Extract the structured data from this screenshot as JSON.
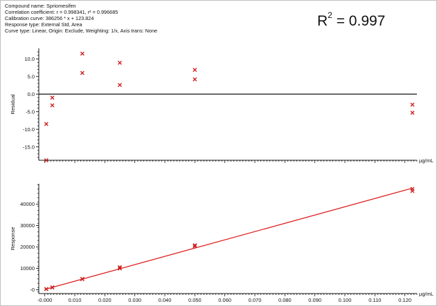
{
  "info": {
    "compound": "Compound name: Spriomesifen",
    "correlation": "Correlation coefficient: r = 0.998341, r² = 0.996685",
    "calibration": "Calibration curve: 386256 * x + 123.824",
    "response_type": "Response type: External Std, Area",
    "curve_type": "Curve type: Linear, Origin: Exclude, Weighting: 1/x, Axis trans: None"
  },
  "r2": {
    "label": "R",
    "sup": "2",
    "value": "= 0.997"
  },
  "colors": {
    "points": "#cc2222",
    "fit_line": "#dd2222",
    "axes": "#111111"
  },
  "chart_data": [
    {
      "type": "scatter",
      "ylabel": "Residual",
      "xunit": "μg/mL",
      "xlim": [
        -0.002,
        0.124
      ],
      "ylim": [
        -18.8,
        13.0
      ],
      "yticks": [
        10.0,
        5.0,
        0.0,
        -5.0,
        -10.0,
        -15.0
      ],
      "ytick_labels": [
        "10.0",
        "5.0",
        "0.0",
        "-5.0",
        "-10.0",
        "-15.0"
      ],
      "zero_line": 0.0,
      "points": [
        {
          "x": 0.0005,
          "y": -8.5
        },
        {
          "x": 0.0005,
          "y": -18.8
        },
        {
          "x": 0.0025,
          "y": -1.0
        },
        {
          "x": 0.0025,
          "y": -3.2
        },
        {
          "x": 0.0125,
          "y": 11.5
        },
        {
          "x": 0.0125,
          "y": 6.0
        },
        {
          "x": 0.025,
          "y": 8.9
        },
        {
          "x": 0.025,
          "y": 2.6
        },
        {
          "x": 0.05,
          "y": 6.9
        },
        {
          "x": 0.05,
          "y": 4.2
        },
        {
          "x": 0.1225,
          "y": -3.0
        },
        {
          "x": 0.1225,
          "y": -5.3
        }
      ]
    },
    {
      "type": "scatter",
      "ylabel": "Response",
      "xunit": "μg/mL",
      "xlim": [
        -0.002,
        0.124
      ],
      "ylim": [
        -1800,
        49500
      ],
      "yticks": [
        0,
        10000,
        20000,
        30000,
        40000
      ],
      "ytick_labels": [
        "-0",
        "10000",
        "20000",
        "30000",
        "40000"
      ],
      "xticks": [
        0.0,
        0.01,
        0.02,
        0.03,
        0.04,
        0.05,
        0.06,
        0.07,
        0.08,
        0.09,
        0.1,
        0.11,
        0.12
      ],
      "xtick_labels": [
        "-0.000",
        "0.010",
        "0.020",
        "0.030",
        "0.040",
        "0.050",
        "0.060",
        "0.070",
        "0.080",
        "0.090",
        "0.100",
        "0.110",
        "0.120"
      ],
      "fit": {
        "slope": 386256,
        "intercept": 123.824,
        "x_range": [
          0.0,
          0.1225
        ]
      },
      "points": [
        {
          "x": 0.0005,
          "y": 310
        },
        {
          "x": 0.0005,
          "y": 300
        },
        {
          "x": 0.0025,
          "y": 1090
        },
        {
          "x": 0.0025,
          "y": 1020
        },
        {
          "x": 0.0125,
          "y": 5050
        },
        {
          "x": 0.0125,
          "y": 4950
        },
        {
          "x": 0.025,
          "y": 10550
        },
        {
          "x": 0.025,
          "y": 9950
        },
        {
          "x": 0.05,
          "y": 20800
        },
        {
          "x": 0.05,
          "y": 20300
        },
        {
          "x": 0.1225,
          "y": 47100
        },
        {
          "x": 0.1225,
          "y": 46100
        }
      ]
    }
  ]
}
